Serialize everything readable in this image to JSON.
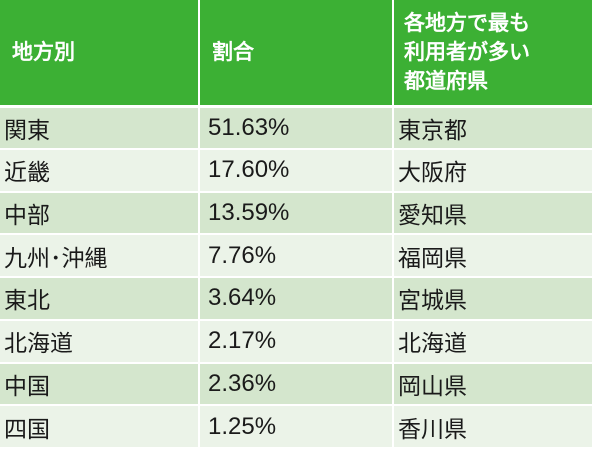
{
  "table": {
    "headers": {
      "region": "地方別",
      "share": "割合",
      "top_prefecture_lines": [
        "各地方で最も",
        "利用者が多い",
        "都道府県"
      ]
    },
    "rows": [
      {
        "region": "関東",
        "share": "51.63%",
        "prefecture": "東京都"
      },
      {
        "region": "近畿",
        "share": "17.60%",
        "prefecture": "大阪府"
      },
      {
        "region": "中部",
        "share": "13.59%",
        "prefecture": "愛知県"
      },
      {
        "region": "九州･沖縄",
        "share": "7.76%",
        "prefecture": "福岡県"
      },
      {
        "region": "東北",
        "share": "3.64%",
        "prefecture": "宮城県"
      },
      {
        "region": "北海道",
        "share": "2.17%",
        "prefecture": "北海道"
      },
      {
        "region": "中国",
        "share": "2.36%",
        "prefecture": "岡山県"
      },
      {
        "region": "四国",
        "share": "1.25%",
        "prefecture": "香川県"
      }
    ]
  }
}
